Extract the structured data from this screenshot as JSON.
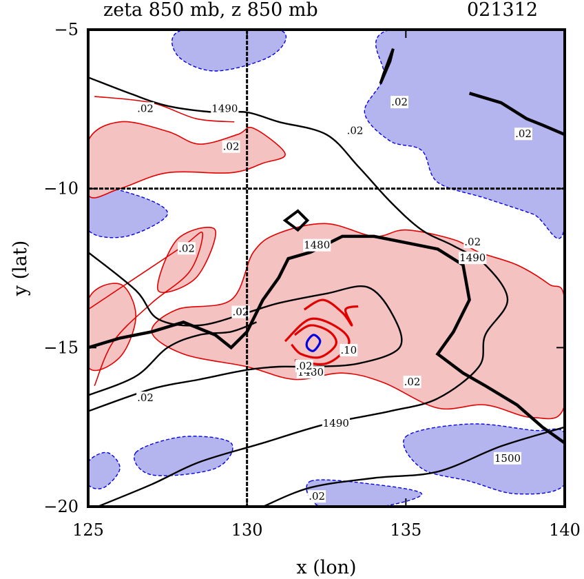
{
  "chart_data": {
    "type": "contour",
    "title": "zeta 850 mb, z 850 mb",
    "date_code": "021312",
    "xlabel": "x (lon)",
    "ylabel": "y (lat)",
    "xlim": [
      125,
      140
    ],
    "ylim": [
      -20,
      -5
    ],
    "xticks": [
      "125",
      "130",
      "135",
      "140"
    ],
    "yticks": [
      "-5",
      "-10",
      "-15",
      "-20"
    ],
    "reference_lines": {
      "x": 130,
      "y": -10
    },
    "colors": {
      "positive_fill": "#f5c2c2",
      "positive_line": "#e00000",
      "negative_fill": "#b4b4ef",
      "negative_line": "#0000e0",
      "height_line": "#000000"
    },
    "height_contours": [
      {
        "label": "1480",
        "points": [
          [
            125,
            -12
          ],
          [
            126.5,
            -13.2
          ],
          [
            127.2,
            -14.1
          ],
          [
            128.5,
            -14.3
          ],
          [
            130,
            -13.9
          ],
          [
            131,
            -13.6
          ],
          [
            132.5,
            -13.3
          ],
          [
            133.8,
            -13.1
          ],
          [
            134.6,
            -14
          ],
          [
            134.8,
            -15
          ],
          [
            133.5,
            -15.5
          ],
          [
            132,
            -15.6
          ],
          [
            131,
            -15.6
          ],
          [
            130,
            -15.7
          ],
          [
            128.5,
            -16
          ],
          [
            127,
            -16.3
          ],
          [
            125,
            -17
          ]
        ]
      },
      {
        "label": "1490",
        "points": [
          [
            125,
            -6.5
          ],
          [
            126.3,
            -7
          ],
          [
            127.5,
            -7.4
          ],
          [
            129,
            -7.6
          ],
          [
            130,
            -7.6
          ],
          [
            131,
            -7.9
          ],
          [
            132.5,
            -8.3
          ],
          [
            133.5,
            -9.3
          ],
          [
            134.5,
            -10.4
          ],
          [
            135.5,
            -11.3
          ],
          [
            136.5,
            -11.8
          ],
          [
            137.5,
            -12.4
          ],
          [
            138.2,
            -13.5
          ],
          [
            137.5,
            -14.6
          ],
          [
            137.3,
            -15.6
          ],
          [
            136,
            -16.6
          ],
          [
            134.5,
            -17
          ],
          [
            132.5,
            -17.4
          ],
          [
            130.5,
            -18
          ],
          [
            128.5,
            -18.6
          ],
          [
            127,
            -19.3
          ],
          [
            125.3,
            -20
          ]
        ]
      },
      {
        "label": "1500",
        "points": [
          [
            130.5,
            -20
          ],
          [
            132,
            -19.4
          ],
          [
            134,
            -19.1
          ],
          [
            136,
            -18.9
          ],
          [
            138,
            -18.1
          ],
          [
            140,
            -17.5
          ]
        ]
      },
      {
        "label": "",
        "points": [
          [
            125,
            -16.5
          ],
          [
            126.5,
            -15.9
          ],
          [
            127.5,
            -15
          ],
          [
            128.5,
            -14.6
          ],
          [
            129.5,
            -14.5
          ],
          [
            130.3,
            -14.2
          ]
        ]
      }
    ],
    "thick_lines": [
      {
        "points": [
          [
            125,
            -15
          ],
          [
            126,
            -14.7
          ],
          [
            127,
            -14.5
          ],
          [
            128,
            -14.2
          ],
          [
            129,
            -14.6
          ],
          [
            129.5,
            -15
          ],
          [
            130,
            -14.5
          ],
          [
            130.5,
            -13.5
          ],
          [
            131,
            -12.8
          ],
          [
            131.3,
            -12.2
          ],
          [
            132,
            -12
          ],
          [
            133,
            -11.5
          ],
          [
            134,
            -11.5
          ],
          [
            135,
            -11.7
          ],
          [
            136,
            -11.9
          ],
          [
            136.8,
            -12.4
          ],
          [
            137,
            -13.5
          ],
          [
            136.5,
            -14.5
          ],
          [
            136,
            -15.2
          ],
          [
            136.8,
            -15.8
          ],
          [
            137.5,
            -16.2
          ],
          [
            138.5,
            -16.8
          ],
          [
            139.3,
            -17.5
          ],
          [
            140,
            -18
          ]
        ]
      },
      {
        "points": [
          [
            137,
            -7
          ],
          [
            138,
            -7.3
          ],
          [
            138.8,
            -7.8
          ],
          [
            139.3,
            -8
          ],
          [
            140,
            -8.3
          ]
        ]
      }
    ],
    "vorticity_positive_regions": [
      {
        "points": [
          [
            125,
            -8.5
          ],
          [
            126,
            -7.9
          ],
          [
            127.5,
            -8.2
          ],
          [
            128.5,
            -8.6
          ],
          [
            129.7,
            -8.3
          ],
          [
            130.2,
            -8.1
          ],
          [
            131.2,
            -8.9
          ],
          [
            130.5,
            -9.2
          ],
          [
            129.5,
            -9.5
          ],
          [
            127.5,
            -9.5
          ],
          [
            126,
            -10
          ],
          [
            125,
            -10.2
          ]
        ]
      },
      {
        "points": [
          [
            130.2,
            -12
          ],
          [
            131,
            -11.4
          ],
          [
            132.5,
            -11.1
          ],
          [
            134,
            -11.5
          ],
          [
            135,
            -11.3
          ],
          [
            136.5,
            -11.6
          ],
          [
            137.3,
            -12
          ],
          [
            138.5,
            -12.4
          ],
          [
            139.5,
            -13
          ],
          [
            140,
            -13.5
          ],
          [
            140,
            -16.8
          ],
          [
            139,
            -17.2
          ],
          [
            137.5,
            -16.8
          ],
          [
            136,
            -16.9
          ],
          [
            134.3,
            -16.1
          ],
          [
            133,
            -15.8
          ],
          [
            131.5,
            -16
          ],
          [
            130,
            -15.6
          ],
          [
            128,
            -15.2
          ],
          [
            127,
            -14.5
          ],
          [
            127.8,
            -13.8
          ],
          [
            129.5,
            -13.5
          ]
        ]
      },
      {
        "points": [
          [
            125,
            -13.5
          ],
          [
            126,
            -13
          ],
          [
            126.5,
            -14
          ],
          [
            126,
            -15.3
          ],
          [
            125,
            -15.6
          ]
        ]
      },
      {
        "points": [
          [
            127.2,
            -13.2
          ],
          [
            127.8,
            -11.6
          ],
          [
            129,
            -11.3
          ],
          [
            128.4,
            -12.8
          ]
        ]
      }
    ],
    "vorticity_negative_regions": [
      {
        "points": [
          [
            134.5,
            -5
          ],
          [
            140,
            -5
          ],
          [
            140,
            -11.2
          ],
          [
            139,
            -10.8
          ],
          [
            137.5,
            -10.3
          ],
          [
            136,
            -9.8
          ],
          [
            135.5,
            -8.8
          ],
          [
            134.5,
            -8.5
          ],
          [
            133.7,
            -7.6
          ],
          [
            134.3,
            -6.5
          ]
        ]
      },
      {
        "points": [
          [
            128,
            -5
          ],
          [
            131,
            -5
          ],
          [
            130.8,
            -5.8
          ],
          [
            129,
            -6.3
          ],
          [
            127.8,
            -5.8
          ]
        ]
      },
      {
        "points": [
          [
            125,
            -10
          ],
          [
            126.5,
            -10.2
          ],
          [
            127.5,
            -10.8
          ],
          [
            126.2,
            -11.5
          ],
          [
            125,
            -11.3
          ]
        ]
      },
      {
        "points": [
          [
            135,
            -17.8
          ],
          [
            137,
            -17.4
          ],
          [
            139,
            -17.6
          ],
          [
            140,
            -17.7
          ],
          [
            140,
            -19.3
          ],
          [
            138.5,
            -19.6
          ],
          [
            137,
            -19.2
          ],
          [
            135.5,
            -18.8
          ]
        ]
      },
      {
        "points": [
          [
            126.5,
            -18.3
          ],
          [
            128,
            -17.8
          ],
          [
            129.5,
            -18
          ],
          [
            129,
            -18.8
          ],
          [
            127,
            -19
          ]
        ]
      },
      {
        "points": [
          [
            132,
            -19.2
          ],
          [
            134,
            -19.3
          ],
          [
            135.5,
            -19.6
          ],
          [
            134.2,
            -20
          ],
          [
            132.3,
            -20
          ]
        ]
      },
      {
        "points": [
          [
            125,
            -18.6
          ],
          [
            125.6,
            -18.3
          ],
          [
            126,
            -18.8
          ],
          [
            125.5,
            -19.4
          ],
          [
            125,
            -19.3
          ]
        ]
      }
    ],
    "vorticity_thin_lines": [
      {
        "points": [
          [
            125,
            -13.8
          ],
          [
            126.5,
            -12.8
          ],
          [
            128,
            -11.8
          ],
          [
            128.6,
            -11.4
          ],
          [
            128.2,
            -12.6
          ],
          [
            127,
            -13.6
          ],
          [
            125.8,
            -14.8
          ],
          [
            125.2,
            -16.2
          ]
        ]
      },
      {
        "points": [
          [
            125.2,
            -7.1
          ],
          [
            127,
            -7.3
          ],
          [
            128.4,
            -7.8
          ],
          [
            129.6,
            -7.9
          ]
        ]
      }
    ],
    "vorticity_center": [
      {
        "points": [
          [
            131.5,
            -14.6
          ],
          [
            132,
            -14.3
          ],
          [
            132.6,
            -14.5
          ],
          [
            132.8,
            -14.9
          ],
          [
            132.3,
            -15.3
          ],
          [
            131.7,
            -15.2
          ],
          [
            131.4,
            -14.9
          ]
        ]
      },
      {
        "points": [
          [
            131.2,
            -14.8
          ],
          [
            132,
            -14.1
          ],
          [
            132.9,
            -14.4
          ],
          [
            133.2,
            -14.9
          ],
          [
            132.5,
            -15.5
          ],
          [
            131.5,
            -15.4
          ]
        ]
      },
      {
        "points": [
          [
            131.8,
            -13.8
          ],
          [
            132.4,
            -13.5
          ],
          [
            133,
            -13.9
          ],
          [
            133.3,
            -14.3
          ],
          [
            133.1,
            -13.8
          ],
          [
            133.5,
            -13.7
          ]
        ]
      }
    ],
    "vorticity_negative_center": {
      "points": [
        [
          131.9,
          -14.8
        ],
        [
          132.1,
          -14.6
        ],
        [
          132.3,
          -14.8
        ],
        [
          132.1,
          -15.1
        ],
        [
          131.9,
          -15
        ]
      ]
    },
    "diamond_outlines": [
      {
        "points": [
          [
            134.2,
            -6.7
          ],
          [
            134.5,
            -6
          ],
          [
            134.6,
            -5.6
          ],
          [
            134.3,
            -6.4
          ]
        ]
      },
      {
        "points": [
          [
            131.2,
            -11
          ],
          [
            131.6,
            -10.7
          ],
          [
            131.9,
            -11
          ],
          [
            131.6,
            -11.3
          ]
        ]
      }
    ],
    "vorticity_labels": [
      {
        "text": ".02",
        "x": 126.8,
        "y": -7.5
      },
      {
        "text": ".02",
        "x": 134.8,
        "y": -7.3
      },
      {
        "text": ".02",
        "x": 133.4,
        "y": -8.2
      },
      {
        "text": ".02",
        "x": 129.5,
        "y": -8.7
      },
      {
        "text": ".02",
        "x": 128.1,
        "y": -11.9
      },
      {
        "text": ".02",
        "x": 129.8,
        "y": -13.9
      },
      {
        "text": ".02",
        "x": 131.8,
        "y": -15.6
      },
      {
        "text": ".10",
        "x": 133.2,
        "y": -15.1
      },
      {
        "text": ".02",
        "x": 135.2,
        "y": -16.1
      },
      {
        "text": ".02",
        "x": 126.8,
        "y": -16.6
      },
      {
        "text": ".02",
        "x": 137.1,
        "y": -11.7
      },
      {
        "text": ".02",
        "x": 138.7,
        "y": -8.3
      },
      {
        "text": ".02",
        "x": 132.2,
        "y": -19.7
      }
    ],
    "height_labels": [
      {
        "text": "1490",
        "x": 129.3,
        "y": -7.5
      },
      {
        "text": "1480",
        "x": 132.2,
        "y": -11.8
      },
      {
        "text": "1480",
        "x": 132,
        "y": -15.8
      },
      {
        "text": "1490",
        "x": 132.8,
        "y": -17.4
      },
      {
        "text": "1500",
        "x": 138.2,
        "y": -18.5
      },
      {
        "text": "1490",
        "x": 137.1,
        "y": -12.2
      }
    ]
  }
}
